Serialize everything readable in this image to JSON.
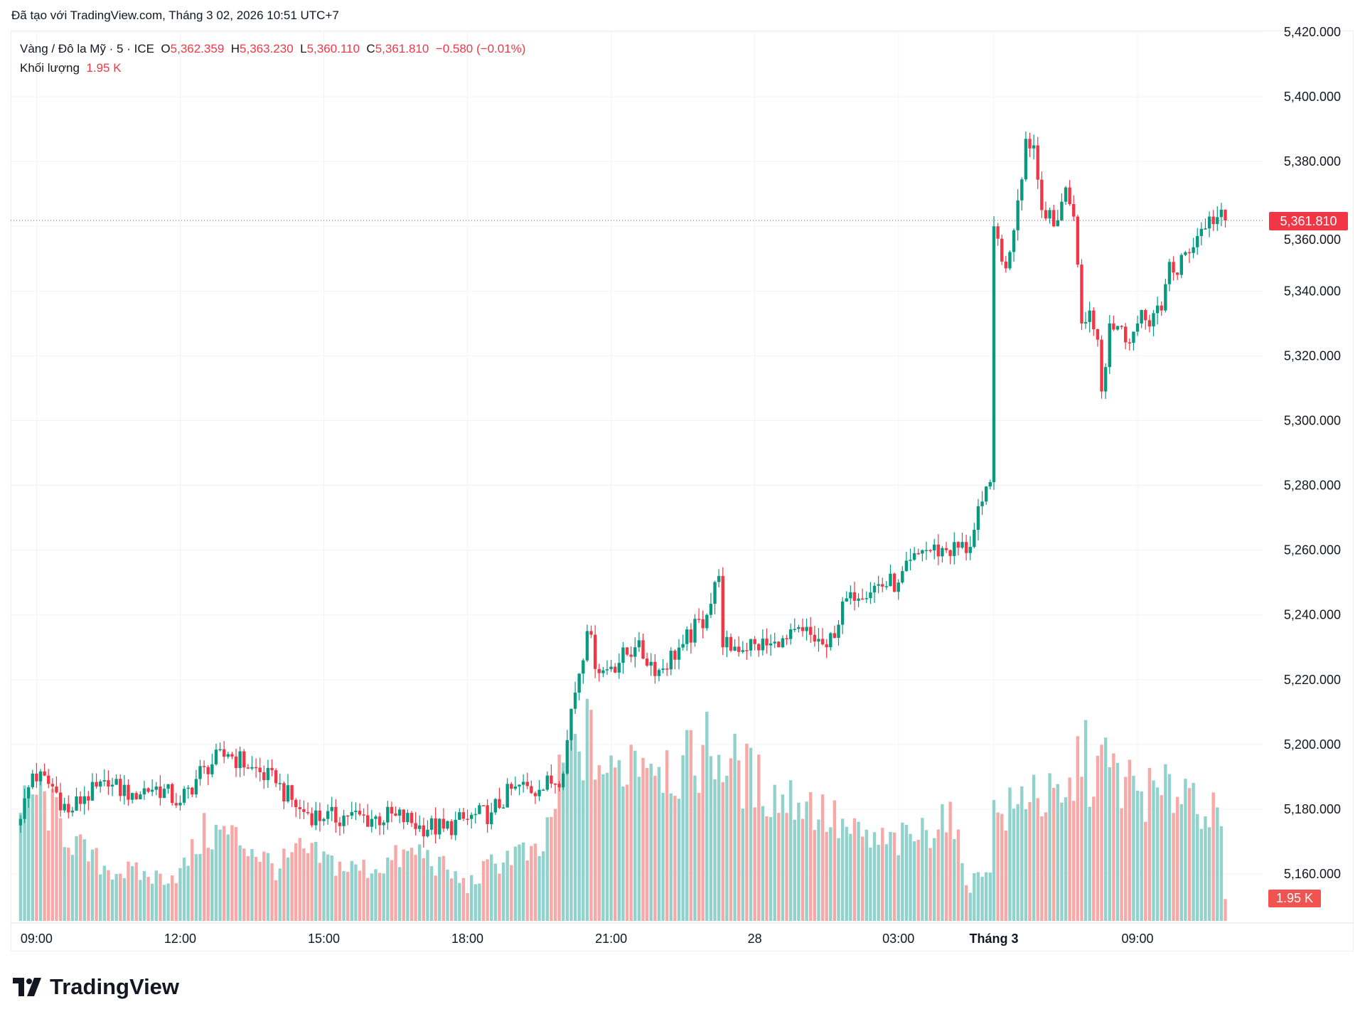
{
  "header": {
    "created_with": "Đã tạo với TradingView.com, Tháng 3 02, 2026 10:51 UTC+7"
  },
  "legend": {
    "symbol": "Vàng / Đô la Mỹ · 5 · ICE",
    "o_label": "O",
    "open": "5,362.359",
    "h_label": "H",
    "high": "5,363.230",
    "l_label": "L",
    "low": "5,360.110",
    "c_label": "C",
    "close": "5,361.810",
    "change": "−0.580 (−0.01%)",
    "volume_label": "Khối lượng",
    "volume": "1.95 K"
  },
  "current_price_label": "5,361.810",
  "current_volume_label": "1.95 K",
  "logo": {
    "text": "TradingView"
  },
  "colors": {
    "up": "#089981",
    "down": "#F23645",
    "up_volume": "#92D2CC",
    "down_volume": "#F7A9A7",
    "last_price_line": "#F23645"
  },
  "chart_data": {
    "type": "candlestick",
    "interval": "5",
    "y_axis": {
      "range": [
        5150,
        5420
      ],
      "ticks": [
        "5,420.000",
        "5,400.000",
        "5,380.000",
        "5,360.000",
        "5,340.000",
        "5,320.000",
        "5,300.000",
        "5,280.000",
        "5,260.000",
        "5,240.000",
        "5,220.000",
        "5,200.000",
        "5,180.000",
        "5,160.000"
      ]
    },
    "x_axis": {
      "ticks": [
        "09:00",
        "12:00",
        "15:00",
        "18:00",
        "21:00",
        "28",
        "03:00",
        "Tháng 3",
        "09:00"
      ]
    },
    "grid": true,
    "last_price": 5361.81,
    "close_anchors": [
      [
        "27 08:40",
        5177
      ],
      [
        "27 08:55",
        5191
      ],
      [
        "27 09:20",
        5187
      ],
      [
        "27 09:40",
        5179
      ],
      [
        "27 10:00",
        5184
      ],
      [
        "27 10:30",
        5187
      ],
      [
        "27 11:00",
        5185
      ],
      [
        "27 11:30",
        5187
      ],
      [
        "27 12:00",
        5182
      ],
      [
        "27 12:30",
        5193
      ],
      [
        "27 13:00",
        5197
      ],
      [
        "27 13:30",
        5193
      ],
      [
        "27 14:00",
        5188
      ],
      [
        "27 14:30",
        5180
      ],
      [
        "27 15:00",
        5177
      ],
      [
        "27 15:30",
        5178
      ],
      [
        "27 16:00",
        5177
      ],
      [
        "27 16:30",
        5178
      ],
      [
        "27 17:00",
        5175
      ],
      [
        "27 17:30",
        5174
      ],
      [
        "27 18:00",
        5177
      ],
      [
        "27 18:30",
        5179
      ],
      [
        "27 19:00",
        5187
      ],
      [
        "27 19:30",
        5186
      ],
      [
        "27 20:00",
        5191
      ],
      [
        "27 20:10",
        5211
      ],
      [
        "27 20:30",
        5235
      ],
      [
        "27 20:45",
        5222
      ],
      [
        "27 21:00",
        5224
      ],
      [
        "27 21:30",
        5230
      ],
      [
        "27 22:00",
        5223
      ],
      [
        "27 22:30",
        5231
      ],
      [
        "27 23:00",
        5240
      ],
      [
        "27 23:15",
        5252
      ],
      [
        "27 23:20",
        5230
      ],
      [
        "28 00:00",
        5231
      ],
      [
        "28 00:30",
        5230
      ],
      [
        "28 01:00",
        5235
      ],
      [
        "28 01:30",
        5230
      ],
      [
        "28 02:00",
        5247
      ],
      [
        "28 02:30",
        5249
      ],
      [
        "28 03:00",
        5250
      ],
      [
        "28 03:30",
        5260
      ],
      [
        "28 04:00",
        5260
      ],
      [
        "28 04:30",
        5261
      ],
      [
        "28 04:45",
        5275
      ],
      [
        "28 04:55",
        5281
      ],
      [
        "02 06:00",
        5360
      ],
      [
        "02 06:15",
        5347
      ],
      [
        "02 06:30",
        5368
      ],
      [
        "02 06:40",
        5387
      ],
      [
        "02 06:50",
        5385
      ],
      [
        "02 07:00",
        5365
      ],
      [
        "02 07:15",
        5360
      ],
      [
        "02 07:30",
        5372
      ],
      [
        "02 07:40",
        5363
      ],
      [
        "02 07:50",
        5330
      ],
      [
        "02 08:00",
        5334
      ],
      [
        "02 08:10",
        5325
      ],
      [
        "02 08:15",
        5309
      ],
      [
        "02 08:25",
        5330
      ],
      [
        "02 08:40",
        5329
      ],
      [
        "02 08:50",
        5324
      ],
      [
        "02 09:00",
        5330
      ],
      [
        "02 09:30",
        5334
      ],
      [
        "02 09:40",
        5349
      ],
      [
        "02 09:50",
        5345
      ],
      [
        "02 10:00",
        5352
      ],
      [
        "02 10:15",
        5357
      ],
      [
        "02 10:30",
        5363
      ],
      [
        "02 10:50",
        5361.81
      ]
    ],
    "volume_anchors_k": [
      [
        "27 08:40",
        9.4
      ],
      [
        "27 09:00",
        11.7
      ],
      [
        "27 09:30",
        8.6
      ],
      [
        "27 10:00",
        6
      ],
      [
        "27 10:30",
        4.7
      ],
      [
        "27 11:00",
        4.3
      ],
      [
        "27 11:30",
        3.9
      ],
      [
        "27 12:00",
        4.3
      ],
      [
        "27 12:30",
        7.8
      ],
      [
        "27 13:00",
        7.8
      ],
      [
        "27 13:30",
        6.6
      ],
      [
        "27 14:00",
        4.7
      ],
      [
        "27 14:30",
        6.2
      ],
      [
        "27 15:00",
        5.5
      ],
      [
        "27 15:30",
        4.7
      ],
      [
        "27 16:00",
        4.7
      ],
      [
        "27 16:30",
        5.5
      ],
      [
        "27 17:00",
        6.2
      ],
      [
        "27 17:30",
        4.7
      ],
      [
        "27 18:00",
        3.1
      ],
      [
        "27 18:30",
        5
      ],
      [
        "27 19:00",
        6.2
      ],
      [
        "27 19:30",
        5.5
      ],
      [
        "27 20:00",
        13.3
      ],
      [
        "27 20:30",
        16.4
      ],
      [
        "27 21:00",
        12.5
      ],
      [
        "27 21:30",
        15.6
      ],
      [
        "27 22:00",
        14.8
      ],
      [
        "27 22:30",
        13.3
      ],
      [
        "27 23:00",
        15.6
      ],
      [
        "27 23:30",
        14
      ],
      [
        "28 00:00",
        12.5
      ],
      [
        "28 00:30",
        11
      ],
      [
        "28 01:00",
        11
      ],
      [
        "28 01:30",
        9.4
      ],
      [
        "28 02:00",
        7.8
      ],
      [
        "28 02:30",
        7
      ],
      [
        "28 03:00",
        7
      ],
      [
        "28 03:30",
        7.8
      ],
      [
        "28 04:00",
        10
      ],
      [
        "28 04:30",
        3.1
      ],
      [
        "28 04:55",
        5.5
      ],
      [
        "02 06:00",
        9.4
      ],
      [
        "02 06:30",
        10
      ],
      [
        "02 06:45",
        12.5
      ],
      [
        "02 07:00",
        11
      ],
      [
        "02 07:30",
        10
      ],
      [
        "02 07:50",
        15.6
      ],
      [
        "02 08:00",
        13.3
      ],
      [
        "02 08:20",
        14
      ],
      [
        "02 08:40",
        12.5
      ],
      [
        "02 09:00",
        11.7
      ],
      [
        "02 09:30",
        11
      ],
      [
        "02 10:00",
        12.5
      ],
      [
        "02 10:30",
        10
      ],
      [
        "02 10:45",
        7.8
      ],
      [
        "02 10:50",
        1.95
      ]
    ]
  }
}
